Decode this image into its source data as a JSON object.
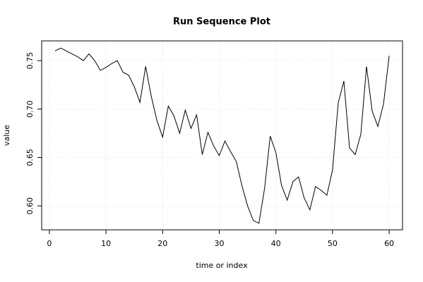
{
  "chart_data": {
    "type": "line",
    "title": "Run Sequence Plot",
    "x_label": "time or index",
    "y_label": "value",
    "x": [
      1,
      2,
      3,
      4,
      5,
      6,
      7,
      8,
      9,
      10,
      11,
      12,
      13,
      14,
      15,
      16,
      17,
      18,
      19,
      20,
      21,
      22,
      23,
      24,
      25,
      26,
      27,
      28,
      29,
      30,
      31,
      32,
      33,
      34,
      35,
      36,
      37,
      38,
      39,
      40,
      41,
      42,
      43,
      44,
      45,
      46,
      47,
      48,
      49,
      50,
      51,
      52,
      53,
      54,
      55,
      56,
      57,
      58,
      59,
      60
    ],
    "values": [
      0.76,
      0.763,
      0.76,
      0.757,
      0.754,
      0.75,
      0.757,
      0.75,
      0.74,
      0.743,
      0.747,
      0.75,
      0.738,
      0.735,
      0.723,
      0.707,
      0.744,
      0.713,
      0.688,
      0.671,
      0.703,
      0.693,
      0.675,
      0.699,
      0.68,
      0.694,
      0.653,
      0.676,
      0.662,
      0.652,
      0.667,
      0.656,
      0.646,
      0.621,
      0.6,
      0.585,
      0.582,
      0.618,
      0.672,
      0.655,
      0.621,
      0.606,
      0.625,
      0.63,
      0.608,
      0.596,
      0.62,
      0.616,
      0.611,
      0.637,
      0.706,
      0.729,
      0.66,
      0.653,
      0.674,
      0.744,
      0.698,
      0.682,
      0.705,
      0.755
    ],
    "color": "#000000",
    "xlim": [
      -1.36,
      62.36
    ],
    "xticks": [
      0,
      10,
      20,
      30,
      40,
      50,
      60
    ],
    "ylim": [
      0.5753,
      0.7704
    ],
    "yticks": [
      {
        "value": 0.6,
        "label": "0.60"
      },
      0.65,
      {
        "value": 0.7,
        "label": "0.70"
      },
      0.75
    ],
    "grid": true
  }
}
